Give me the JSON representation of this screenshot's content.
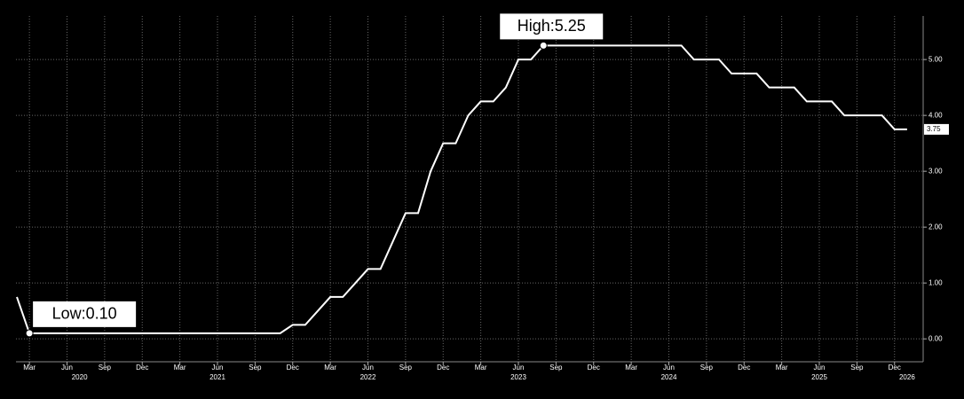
{
  "chart_data": {
    "type": "line",
    "color": "#ffffff",
    "grid": true,
    "x": [
      "2020-02",
      "2020-03",
      "2020-04",
      "2020-05",
      "2020-06",
      "2020-07",
      "2020-08",
      "2020-09",
      "2020-10",
      "2020-11",
      "2020-12",
      "2021-01",
      "2021-02",
      "2021-03",
      "2021-04",
      "2021-05",
      "2021-06",
      "2021-07",
      "2021-08",
      "2021-09",
      "2021-10",
      "2021-11",
      "2021-12",
      "2022-01",
      "2022-02",
      "2022-03",
      "2022-04",
      "2022-05",
      "2022-06",
      "2022-07",
      "2022-08",
      "2022-09",
      "2022-10",
      "2022-11",
      "2022-12",
      "2023-01",
      "2023-02",
      "2023-03",
      "2023-04",
      "2023-05",
      "2023-06",
      "2023-07",
      "2023-08",
      "2023-09",
      "2023-10",
      "2023-11",
      "2023-12",
      "2024-01",
      "2024-02",
      "2024-03",
      "2024-04",
      "2024-05",
      "2024-06",
      "2024-07",
      "2024-08",
      "2024-09",
      "2024-10",
      "2024-11",
      "2024-12",
      "2025-01",
      "2025-02",
      "2025-03",
      "2025-04",
      "2025-05",
      "2025-06",
      "2025-07",
      "2025-08",
      "2025-09",
      "2025-10",
      "2025-11",
      "2025-12",
      "2026-01"
    ],
    "values": [
      0.75,
      0.1,
      0.1,
      0.1,
      0.1,
      0.1,
      0.1,
      0.1,
      0.1,
      0.1,
      0.1,
      0.1,
      0.1,
      0.1,
      0.1,
      0.1,
      0.1,
      0.1,
      0.1,
      0.1,
      0.1,
      0.1,
      0.25,
      0.25,
      0.5,
      0.75,
      0.75,
      1.0,
      1.25,
      1.25,
      1.75,
      2.25,
      2.25,
      3.0,
      3.5,
      3.5,
      4.0,
      4.25,
      4.25,
      4.5,
      5.0,
      5.0,
      5.25,
      5.25,
      5.25,
      5.25,
      5.25,
      5.25,
      5.25,
      5.25,
      5.25,
      5.25,
      5.25,
      5.25,
      5.0,
      5.0,
      5.0,
      4.75,
      4.75,
      4.75,
      4.5,
      4.5,
      4.5,
      4.25,
      4.25,
      4.25,
      4.0,
      4.0,
      4.0,
      4.0,
      3.75,
      3.75
    ],
    "xlim": [
      "2020-02",
      "2026-02"
    ],
    "xticks": [
      {
        "value": "2020-03",
        "label": "Mar"
      },
      {
        "value": "2020-06",
        "label": "Jun"
      },
      {
        "value": "2020-09",
        "label": "Sep"
      },
      {
        "value": "2020-12",
        "label": "Dec"
      },
      {
        "value": "2021-03",
        "label": "Mar"
      },
      {
        "value": "2021-06",
        "label": "Jun"
      },
      {
        "value": "2021-09",
        "label": "Sep"
      },
      {
        "value": "2021-12",
        "label": "Dec"
      },
      {
        "value": "2022-03",
        "label": "Mar"
      },
      {
        "value": "2022-06",
        "label": "Jun"
      },
      {
        "value": "2022-09",
        "label": "Sep"
      },
      {
        "value": "2022-12",
        "label": "Dec"
      },
      {
        "value": "2023-03",
        "label": "Mar"
      },
      {
        "value": "2023-06",
        "label": "Jun"
      },
      {
        "value": "2023-09",
        "label": "Sep"
      },
      {
        "value": "2023-12",
        "label": "Dec"
      },
      {
        "value": "2024-03",
        "label": "Mar"
      },
      {
        "value": "2024-06",
        "label": "Jun"
      },
      {
        "value": "2024-09",
        "label": "Sep"
      },
      {
        "value": "2024-12",
        "label": "Dec"
      },
      {
        "value": "2025-03",
        "label": "Mar"
      },
      {
        "value": "2025-06",
        "label": "Jun"
      },
      {
        "value": "2025-09",
        "label": "Sep"
      },
      {
        "value": "2025-12",
        "label": "Dec"
      }
    ],
    "year_labels": [
      {
        "value": "2020-07",
        "label": "2020"
      },
      {
        "value": "2021-06",
        "label": "2021"
      },
      {
        "value": "2022-06",
        "label": "2022"
      },
      {
        "value": "2023-06",
        "label": "2023"
      },
      {
        "value": "2024-06",
        "label": "2024"
      },
      {
        "value": "2025-06",
        "label": "2025"
      },
      {
        "value": "2026-01",
        "label": "2026"
      }
    ],
    "ylim": [
      -0.41,
      5.78
    ],
    "yticks": [
      {
        "value": 0,
        "label": "0.00"
      },
      {
        "value": 1,
        "label": "1.00"
      },
      {
        "value": 2,
        "label": "2.00"
      },
      {
        "value": 3,
        "label": "3.00"
      },
      {
        "value": 4,
        "label": "4.00"
      },
      {
        "value": 5,
        "label": "5.00"
      }
    ],
    "annotations": [
      {
        "text": "Low:0.10",
        "x": "2020-03",
        "y": 0.1,
        "side": "right-above"
      },
      {
        "text": "High:5.25",
        "x": "2023-08",
        "y": 5.25,
        "side": "left-above"
      }
    ]
  }
}
